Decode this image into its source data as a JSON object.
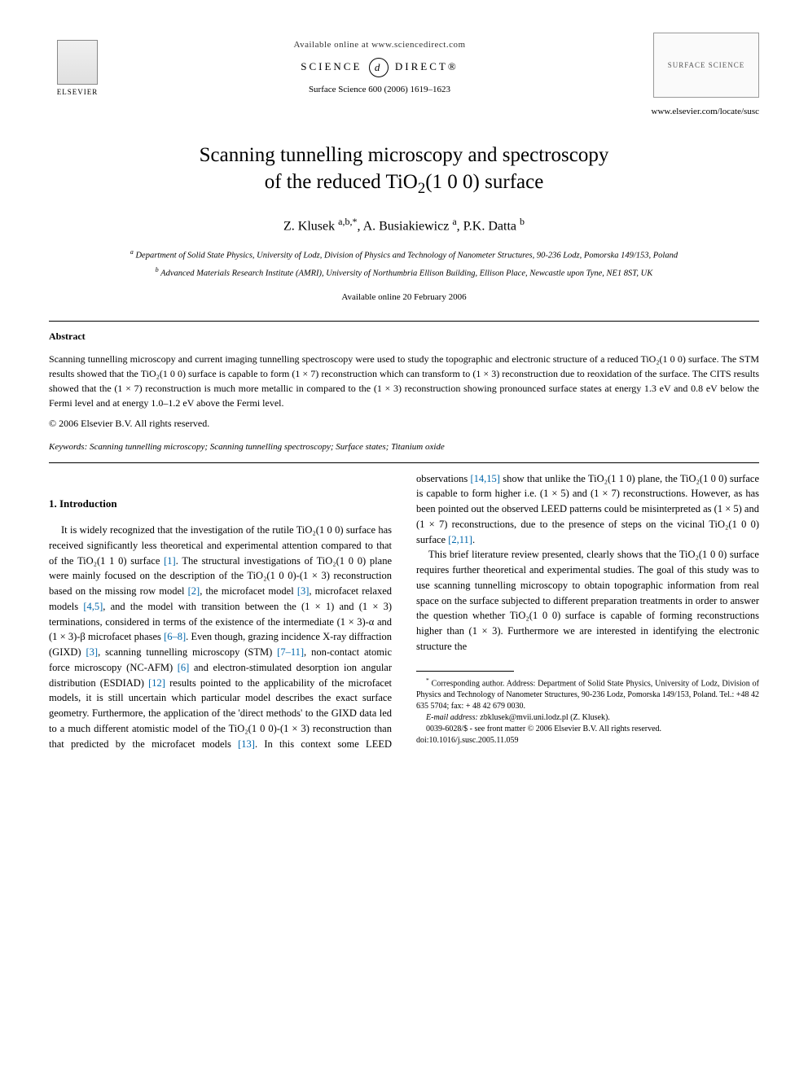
{
  "header": {
    "publisher": "ELSEVIER",
    "available_online": "Available online at www.sciencedirect.com",
    "sd_left": "SCIENCE",
    "sd_d": "d",
    "sd_right": "DIRECT®",
    "journal_line": "Surface Science 600 (2006) 1619–1623",
    "journal_box": "SURFACE SCIENCE",
    "journal_url": "www.elsevier.com/locate/susc"
  },
  "title_line1": "Scanning tunnelling microscopy and spectroscopy",
  "title_line2": "of the reduced TiO",
  "title_sub": "2",
  "title_line2b": "(1 0 0) surface",
  "authors": {
    "a1": "Z. Klusek ",
    "a1_sup": "a,b,*",
    "a2": ", A. Busiakiewicz ",
    "a2_sup": "a",
    "a3": ", P.K. Datta ",
    "a3_sup": "b"
  },
  "affiliations": {
    "a_sup": "a",
    "a": " Department of Solid State Physics, University of Lodz, Division of Physics and Technology of Nanometer Structures, 90-236 Lodz, Pomorska 149/153, Poland",
    "b_sup": "b",
    "b": " Advanced Materials Research Institute (AMRI), University of Northumbria Ellison Building, Ellison Place, Newcastle upon Tyne, NE1 8ST, UK"
  },
  "available_date": "Available online 20 February 2006",
  "abstract": {
    "heading": "Abstract",
    "text": "Scanning tunnelling microscopy and current imaging tunnelling spectroscopy were used to study the topographic and electronic structure of a reduced TiO₂(1 0 0) surface. The STM results showed that the TiO₂(1 0 0) surface is capable to form (1 × 7) reconstruction which can transform to (1 × 3) reconstruction due to reoxidation of the surface. The CITS results showed that the (1 × 7) reconstruction is much more metallic in compared to the (1 × 3) reconstruction showing pronounced surface states at energy 1.3 eV and 0.8 eV below the Fermi level and at energy 1.0–1.2 eV above the Fermi level.",
    "copyright": "© 2006 Elsevier B.V. All rights reserved."
  },
  "keywords": {
    "label": "Keywords:",
    "text": " Scanning tunnelling microscopy; Scanning tunnelling spectroscopy; Surface states; Titanium oxide"
  },
  "section1": {
    "heading": "1. Introduction",
    "p1a": "It is widely recognized that the investigation of the rutile TiO₂(1 0 0) surface has received significantly less theoretical and experimental attention compared to that of the TiO₂(1 1 0) surface ",
    "ref1": "[1]",
    "p1b": ". The structural investigations of TiO₂(1 0 0) plane were mainly focused on the description of the TiO₂(1 0 0)-(1 × 3) reconstruction based on the missing row model ",
    "ref2": "[2]",
    "p1c": ", the microfacet model ",
    "ref3": "[3]",
    "p1d": ", microfacet relaxed models ",
    "ref45": "[4,5]",
    "p1e": ", and the model with transition between the (1 × 1) and (1 × 3) terminations, considered in terms of the existence of the intermediate (1 × 3)-α and (1 × 3)-β microfacet phases ",
    "ref68": "[6–8]",
    "p1f": ". Even though, grazing incidence X-ray diffraction (GIXD) ",
    "ref3b": "[3]",
    "p1g": ", scanning tunnelling microscopy (STM) ",
    "ref711": "[7–11]",
    "p1h": ", non-contact atomic force microscopy (NC-AFM) ",
    "ref6": "[6]",
    "p1i": " and electron-stimulated desorption ion angular distribution (ESDIAD) ",
    "ref12": "[12]",
    "p1j": " results pointed to the applicability of the microfacet models, it is still uncertain which particular model describes the exact surface geometry. Furthermore, the application of the 'direct methods' to the GIXD data led to a much different atomistic model of the TiO₂(1 0 0)-(1 × 3) reconstruction than that predicted by the microfacet models ",
    "ref13": "[13]",
    "p1k": ". In this context some LEED observations ",
    "ref1415": "[14,15]",
    "p1l": " show that unlike the TiO₂(1 1 0) plane, the TiO₂(1 0 0) surface is capable to form higher i.e. (1 × 5) and (1 × 7) reconstructions. However, as has been pointed out the observed LEED patterns could be misinterpreted as (1 × 5) and (1 × 7) reconstructions, due to the presence of steps on the vicinal TiO₂(1 0 0) surface ",
    "ref211": "[2,11]",
    "p1m": ".",
    "p2": "This brief literature review presented, clearly shows that the TiO₂(1 0 0) surface requires further theoretical and experimental studies. The goal of this study was to use scanning tunnelling microscopy to obtain topographic information from real space on the surface subjected to different preparation treatments in order to answer the question whether TiO₂(1 0 0) surface is capable of forming reconstructions higher than (1 × 3). Furthermore we are interested in identifying the electronic structure the"
  },
  "footnotes": {
    "corr_sup": "*",
    "corr": " Corresponding author. Address: Department of Solid State Physics, University of Lodz, Division of Physics and Technology of Nanometer Structures, 90-236 Lodz, Pomorska 149/153, Poland. Tel.: +48 42 635 5704; fax: + 48 42 679 0030.",
    "email_label": "E-mail address:",
    "email": " zbklusek@mvii.uni.lodz.pl",
    "email_name": " (Z. Klusek)."
  },
  "footer": {
    "line1": "0039-6028/$ - see front matter © 2006 Elsevier B.V. All rights reserved.",
    "line2": "doi:10.1016/j.susc.2005.11.059"
  }
}
